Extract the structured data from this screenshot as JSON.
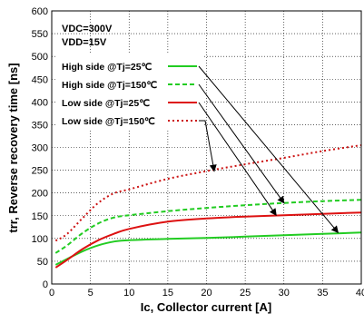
{
  "chart_data": {
    "type": "line",
    "xlabel": "Ic, Collector current [A]",
    "ylabel": "trr, Reverse recovery time [ns]",
    "xlim": [
      0,
      40
    ],
    "ylim": [
      0,
      600
    ],
    "x_ticks": [
      0,
      5,
      10,
      15,
      20,
      25,
      30,
      35,
      40
    ],
    "y_ticks": [
      0,
      50,
      100,
      150,
      200,
      250,
      300,
      350,
      400,
      450,
      500,
      550,
      600
    ],
    "x_tick_labels": [
      "0",
      "5",
      "10",
      "15",
      "20",
      "25",
      "30",
      "35",
      "40"
    ],
    "y_tick_labels": [
      "0",
      "50",
      "100",
      "150",
      "200",
      "250",
      "300",
      "350",
      "400",
      "450",
      "500",
      "550",
      "600"
    ],
    "grid": true,
    "legend_position": "upper-left",
    "conditions": [
      "VDC=300V",
      "VDD=15V"
    ],
    "series": [
      {
        "name": "High side @Tj=25℃",
        "color": "#22cc22",
        "dash": "solid",
        "points": [
          [
            0.5,
            42
          ],
          [
            2,
            55
          ],
          [
            4,
            72
          ],
          [
            6,
            85
          ],
          [
            8,
            93
          ],
          [
            10,
            96
          ],
          [
            15,
            99
          ],
          [
            20,
            101
          ],
          [
            25,
            104
          ],
          [
            30,
            107
          ],
          [
            35,
            110
          ],
          [
            40,
            113
          ]
        ]
      },
      {
        "name": "High side @Tj=150℃",
        "color": "#22cc22",
        "dash": "dashed",
        "points": [
          [
            0.5,
            68
          ],
          [
            2,
            85
          ],
          [
            4,
            112
          ],
          [
            6,
            133
          ],
          [
            8,
            146
          ],
          [
            10,
            151
          ],
          [
            15,
            160
          ],
          [
            20,
            167
          ],
          [
            25,
            173
          ],
          [
            30,
            178
          ],
          [
            35,
            182
          ],
          [
            40,
            185
          ]
        ]
      },
      {
        "name": "Low side @Tj=25℃",
        "color": "#dd1111",
        "dash": "solid",
        "points": [
          [
            0.5,
            36
          ],
          [
            2,
            53
          ],
          [
            4,
            77
          ],
          [
            6,
            96
          ],
          [
            8,
            110
          ],
          [
            10,
            121
          ],
          [
            15,
            137
          ],
          [
            20,
            144
          ],
          [
            25,
            148
          ],
          [
            30,
            151
          ],
          [
            35,
            154
          ],
          [
            40,
            157
          ]
        ]
      },
      {
        "name": "Low side @Tj=150℃",
        "color": "#cc1111",
        "dash": "dotted",
        "points": [
          [
            0.5,
            95
          ],
          [
            2,
            110
          ],
          [
            4,
            145
          ],
          [
            6,
            178
          ],
          [
            8,
            199
          ],
          [
            10,
            208
          ],
          [
            15,
            231
          ],
          [
            20,
            248
          ],
          [
            25,
            263
          ],
          [
            30,
            277
          ],
          [
            35,
            292
          ],
          [
            40,
            305
          ]
        ]
      }
    ]
  }
}
